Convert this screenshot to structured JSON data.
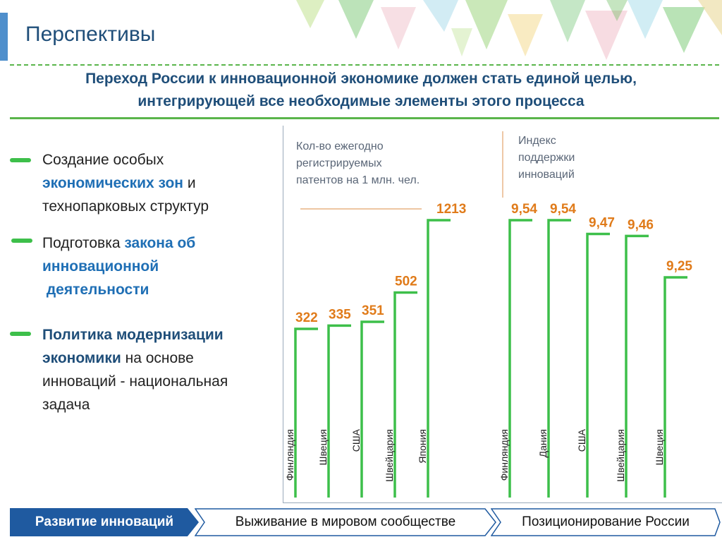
{
  "header": {
    "title": "Перспективы",
    "subtitle_line1": "Переход России к инновационной экономике должен стать единой целью,",
    "subtitle_line2": "интегрирующей все необходимые элементы этого процесса"
  },
  "bullets": [
    {
      "lines": [
        [
          {
            "t": "Создание особых",
            "s": "n"
          }
        ],
        [
          {
            "t": "экономических зон",
            "s": "hl"
          },
          {
            "t": " и",
            "s": "n"
          }
        ],
        [
          {
            "t": "технопарковых структур",
            "s": "n"
          }
        ]
      ]
    },
    {
      "lines": [
        [
          {
            "t": "Подготовка ",
            "s": "n"
          },
          {
            "t": "закона об",
            "s": "hl"
          }
        ],
        [
          {
            "t": "инновационной",
            "s": "hl"
          }
        ],
        [
          {
            "t": " деятельности",
            "s": "hl"
          }
        ]
      ]
    },
    {
      "lines": [
        [
          {
            "t": "Политика модернизации",
            "s": "dk"
          }
        ],
        [
          {
            "t": "экономики",
            "s": "dk"
          },
          {
            "t": " на основе",
            "s": "n"
          }
        ],
        [
          {
            "t": "инноваций - национальная",
            "s": "n"
          }
        ],
        [
          {
            "t": "задача",
            "s": "n"
          }
        ]
      ]
    }
  ],
  "chart_data": [
    {
      "type": "bar",
      "title": "Кол-во ежегодно регистрируемых патентов на 1 млн. чел.",
      "title_lines": [
        "Кол-во ежегодно",
        "регистрируемых",
        "патентов на 1 млн. чел."
      ],
      "categories": [
        "Финляндия",
        "Швеция",
        "США",
        "Швейцария",
        "Япония"
      ],
      "values": [
        322,
        335,
        351,
        502,
        1213
      ],
      "labels": [
        "322",
        "335",
        "351",
        "502",
        "1213"
      ]
    },
    {
      "type": "bar",
      "title": "Индекс поддержки инноваций",
      "title_lines": [
        "Индекс",
        "поддержки",
        "инноваций"
      ],
      "categories": [
        "Финляндия",
        "Дания",
        "США",
        "Швейцария",
        "Швеция"
      ],
      "values": [
        9.54,
        9.54,
        9.47,
        9.46,
        9.25
      ],
      "labels": [
        "9,54",
        "9,54",
        "9,47",
        "9,46",
        "9,25"
      ]
    }
  ],
  "colors": {
    "bar": "#3dbf4a",
    "value_label": "#e07b1a",
    "caption_line": "#e3a46a",
    "title": "#1f4e79",
    "tab": "#1f5aa0"
  },
  "footer": {
    "tab1": "Развитие инноваций",
    "tab2": "Выживание в мировом сообществе",
    "tab3": "Позиционирование России"
  }
}
